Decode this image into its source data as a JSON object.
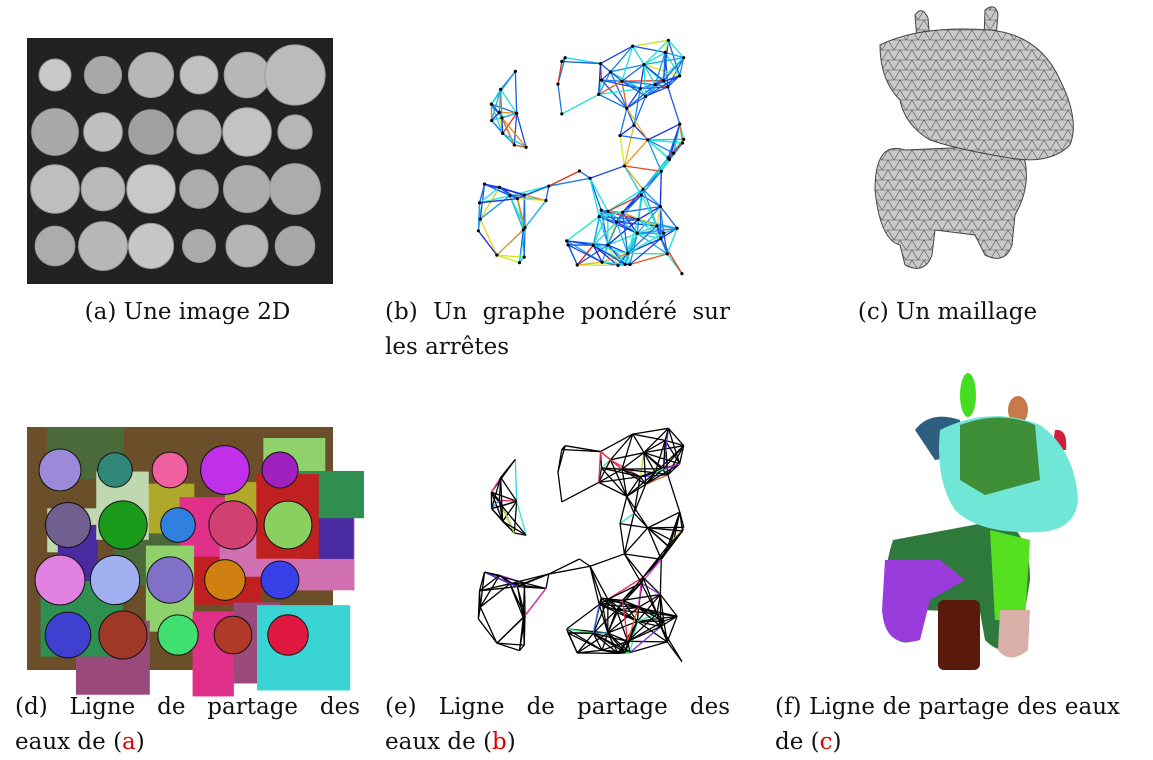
{
  "figures": [
    {
      "label": "(a)",
      "text": "Une image 2D"
    },
    {
      "label": "(b)",
      "text": "Un graphe pondéré sur les arrêtes"
    },
    {
      "label": "(c)",
      "text": "Un maillage"
    },
    {
      "label": "(d)",
      "text": "Ligne de partage des eaux de (",
      "ref": "a",
      "suffix": ")"
    },
    {
      "label": "(e)",
      "text": "Ligne de partage des eaux de (",
      "ref": "b",
      "suffix": ")"
    },
    {
      "label": "(f)",
      "text": "Ligne de partage des eaux de (",
      "ref": "c",
      "suffix": ")"
    }
  ]
}
